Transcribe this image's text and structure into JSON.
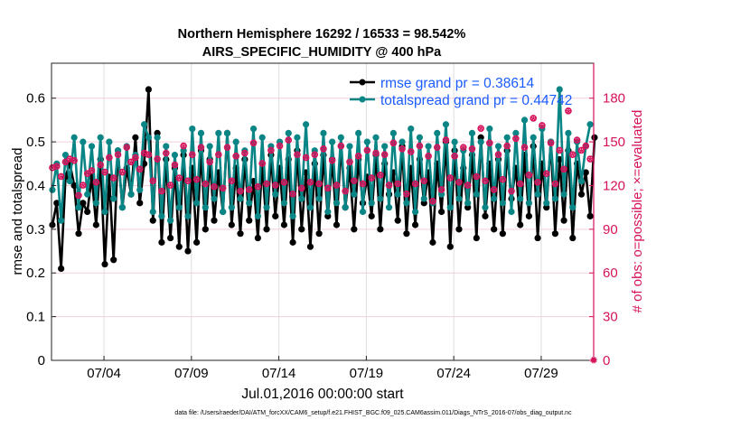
{
  "chart_data": {
    "type": "line",
    "title": [
      "Northern Hemisphere 16292 / 16533 = 98.542%",
      "AIRS_SPECIFIC_HUMIDITY @ 400 hPa"
    ],
    "xlabel": "Jul.01,2016 00:00:00 start",
    "ylabel": "rmse and totalspread",
    "y2label": "# of obs: o=possible; ×=evaluated",
    "footnote": "data file: /Users/raeder/DAI/ATM_forcXX/CAM6_setup/f.e21.FHIST_BGC.f09_025.CAM6assim.011/Diags_NTrS_2016-07/obs_diag_output.nc",
    "xlim_days": [
      0,
      31
    ],
    "time_step_days": 0.25,
    "xticks": [
      {
        "day": 3,
        "label": "07/04"
      },
      {
        "day": 8,
        "label": "07/09"
      },
      {
        "day": 13,
        "label": "07/14"
      },
      {
        "day": 18,
        "label": "07/19"
      },
      {
        "day": 23,
        "label": "07/24"
      },
      {
        "day": 28,
        "label": "07/29"
      }
    ],
    "ylim": [
      0,
      0.68
    ],
    "yticks": [
      0,
      0.1,
      0.2,
      0.3,
      0.4,
      0.5,
      0.6
    ],
    "ytick_labels": [
      "0",
      "0.1",
      "0.2",
      "0.3",
      "0.4",
      "0.5",
      "0.6"
    ],
    "y2lim": [
      0,
      204
    ],
    "y2ticks": [
      0,
      30,
      60,
      90,
      120,
      150,
      180
    ],
    "y2tick_labels": [
      "0",
      "30",
      "60",
      "90",
      "120",
      "150",
      "180"
    ],
    "grid": true,
    "legend_placement": "top-right",
    "colors": {
      "rmse": "#000000",
      "spread": "#0a8585",
      "obs": "#d6125b",
      "legend_text": "#1a5cff"
    },
    "series": [
      {
        "name": "rmse grand pr = 0.38614",
        "key": "rmse",
        "values": [
          0.31,
          0.36,
          0.21,
          0.42,
          0.45,
          0.4,
          0.29,
          0.36,
          0.34,
          0.42,
          0.31,
          0.46,
          0.22,
          0.42,
          0.23,
          0.48,
          0.35,
          0.44,
          0.38,
          0.51,
          0.36,
          0.45,
          0.62,
          0.32,
          0.52,
          0.27,
          0.46,
          0.28,
          0.44,
          0.26,
          0.47,
          0.25,
          0.44,
          0.27,
          0.48,
          0.3,
          0.46,
          0.32,
          0.43,
          0.34,
          0.52,
          0.31,
          0.44,
          0.29,
          0.46,
          0.32,
          0.41,
          0.28,
          0.45,
          0.3,
          0.47,
          0.33,
          0.44,
          0.31,
          0.46,
          0.27,
          0.48,
          0.3,
          0.43,
          0.26,
          0.45,
          0.29,
          0.47,
          0.33,
          0.46,
          0.31,
          0.49,
          0.35,
          0.44,
          0.3,
          0.46,
          0.36,
          0.42,
          0.33,
          0.47,
          0.3,
          0.45,
          0.38,
          0.43,
          0.32,
          0.49,
          0.29,
          0.44,
          0.31,
          0.46,
          0.36,
          0.43,
          0.27,
          0.45,
          0.34,
          0.5,
          0.26,
          0.48,
          0.3,
          0.44,
          0.35,
          0.47,
          0.28,
          0.51,
          0.33,
          0.45,
          0.3,
          0.46,
          0.29,
          0.48,
          0.37,
          0.44,
          0.31,
          0.47,
          0.33,
          0.49,
          0.28,
          0.45,
          0.35,
          0.5,
          0.29,
          0.46,
          0.32,
          0.48,
          0.28,
          0.45,
          0.38,
          0.43,
          0.33,
          0.51
        ]
      },
      {
        "name": "totalspread grand pr = 0.44742",
        "key": "spread",
        "values": [
          0.39,
          0.45,
          0.32,
          0.47,
          0.41,
          0.51,
          0.35,
          0.5,
          0.38,
          0.49,
          0.36,
          0.51,
          0.34,
          0.5,
          0.37,
          0.48,
          0.35,
          0.49,
          0.38,
          0.47,
          0.39,
          0.54,
          0.51,
          0.34,
          0.51,
          0.33,
          0.49,
          0.32,
          0.47,
          0.35,
          0.48,
          0.33,
          0.53,
          0.36,
          0.52,
          0.35,
          0.49,
          0.37,
          0.52,
          0.34,
          0.52,
          0.35,
          0.5,
          0.37,
          0.48,
          0.36,
          0.53,
          0.33,
          0.51,
          0.35,
          0.49,
          0.38,
          0.5,
          0.36,
          0.52,
          0.33,
          0.51,
          0.37,
          0.54,
          0.35,
          0.48,
          0.37,
          0.52,
          0.34,
          0.5,
          0.36,
          0.51,
          0.35,
          0.49,
          0.38,
          0.52,
          0.34,
          0.5,
          0.36,
          0.51,
          0.37,
          0.49,
          0.35,
          0.52,
          0.38,
          0.5,
          0.36,
          0.53,
          0.34,
          0.51,
          0.37,
          0.49,
          0.36,
          0.52,
          0.38,
          0.54,
          0.35,
          0.5,
          0.37,
          0.48,
          0.36,
          0.52,
          0.38,
          0.5,
          0.35,
          0.53,
          0.37,
          0.49,
          0.36,
          0.51,
          0.34,
          0.52,
          0.37,
          0.55,
          0.36,
          0.51,
          0.38,
          0.53,
          0.36,
          0.5,
          0.37,
          0.62,
          0.38,
          0.52,
          0.35,
          0.5,
          0.41,
          0.49,
          0.54
        ]
      },
      {
        "name": "# obs possible / evaluated",
        "key": "obs",
        "axis": "right",
        "values": [
          131,
          132,
          125,
          135,
          137,
          136,
          112,
          119,
          127,
          129,
          121,
          133,
          128,
          138,
          124,
          140,
          128,
          145,
          135,
          138,
          130,
          141,
          140,
          122,
          137,
          115,
          141,
          119,
          133,
          124,
          146,
          122,
          140,
          123,
          145,
          120,
          135,
          118,
          140,
          117,
          145,
          122,
          139,
          115,
          141,
          116,
          148,
          118,
          134,
          120,
          143,
          119,
          146,
          121,
          150,
          113,
          140,
          117,
          138,
          121,
          140,
          120,
          144,
          117,
          136,
          119,
          146,
          115,
          135,
          122,
          139,
          120,
          143,
          124,
          141,
          126,
          140,
          119,
          148,
          120,
          144,
          113,
          142,
          120,
          146,
          122,
          139,
          108,
          145,
          116,
          150,
          124,
          139,
          121,
          145,
          119,
          144,
          125,
          158,
          122,
          148,
          116,
          140,
          123,
          146,
          115,
          151,
          120,
          145,
          126,
          165,
          121,
          160,
          127,
          148,
          120,
          143,
          130,
          170,
          140,
          150,
          143,
          146,
          137
        ]
      }
    ]
  }
}
